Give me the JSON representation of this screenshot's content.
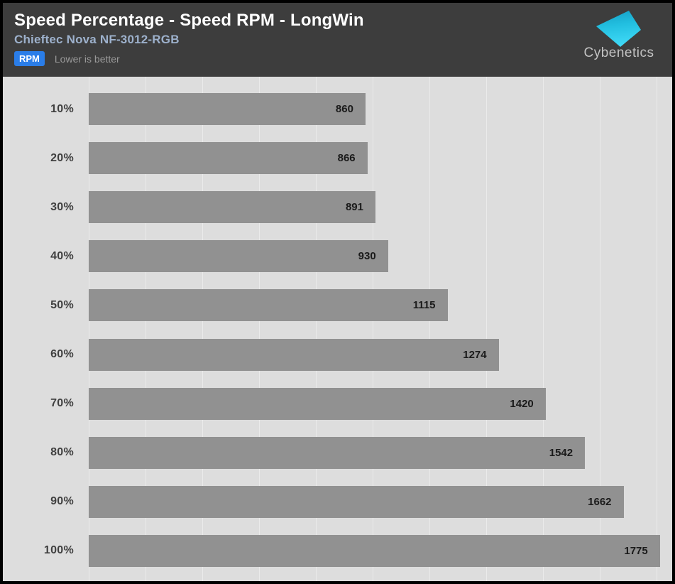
{
  "header": {
    "title": "Speed Percentage - Speed RPM - LongWin",
    "subtitle": "Chieftec Nova NF-3012-RGB",
    "badge_label": "RPM",
    "note": "Lower is better",
    "logo_text": "Cybenetics"
  },
  "colors": {
    "header_bg": "#3d3d3d",
    "title": "#ffffff",
    "subtitle": "#9db1cc",
    "badge_bg": "#2a7de8",
    "badge_text": "#ffffff",
    "note": "#9a9a9a",
    "chart_bg": "#dddddd",
    "gridline": "#eaeaea",
    "bar": "#919191",
    "bar_label": "#1a1a1a",
    "category_label": "#3f3f3f",
    "logo_text": "#c3c3c3",
    "logo_cyan_top": "#149ec4",
    "logo_cyan_bottom": "#3fd9f6"
  },
  "chart_data": {
    "type": "bar",
    "orientation": "horizontal",
    "title": "Speed Percentage - Speed RPM - LongWin",
    "subtitle": "Chieftec Nova NF-3012-RGB",
    "unit": "RPM",
    "note": "Lower is better",
    "categories": [
      "10%",
      "20%",
      "30%",
      "40%",
      "50%",
      "60%",
      "70%",
      "80%",
      "90%",
      "100%"
    ],
    "values": [
      860,
      866,
      891,
      930,
      1115,
      1274,
      1420,
      1542,
      1662,
      1775
    ],
    "xlabel": "",
    "ylabel": "",
    "xlim": [
      0,
      1813
    ],
    "grid": true,
    "legend": false
  }
}
